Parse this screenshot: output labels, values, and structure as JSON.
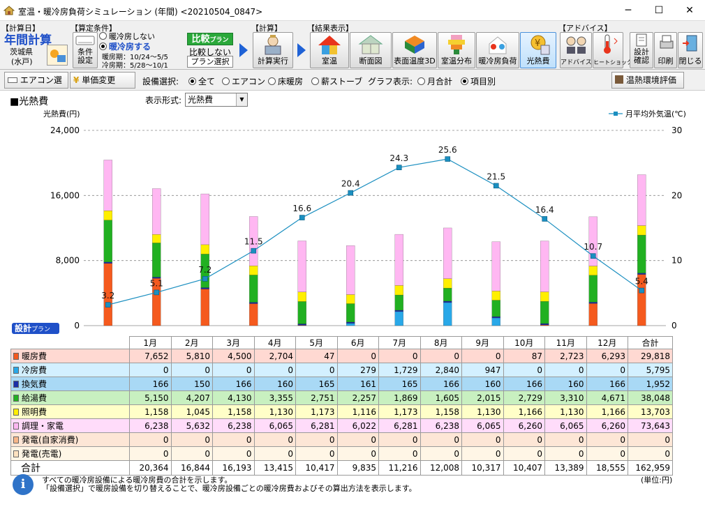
{
  "window": {
    "title": "室温・暖冷房負荷シミュレーション (年間) <20210504_0847>",
    "minimize": "─",
    "maximize": "☐",
    "close": "✕"
  },
  "toolbar": {
    "calc_day_label": "【計算日】",
    "calc_day_value": "年間計算",
    "region": "茨城県",
    "region_sub": "(水戸)",
    "conditions_label": "【算定条件】",
    "cond_button": "条件設定",
    "radio_no_ac": "暖冷房しない",
    "radio_ac": "暖冷房する",
    "heating_period": "暖房期：10/24～5/5",
    "cooling_period": "冷房期：5/28～10/1",
    "compare_title": "比較",
    "compare_sub": "プラン",
    "compare_no": "比較しない",
    "plan_select": "プラン選択",
    "calc_label": "【計算】",
    "calc_run": "計算実行",
    "results_label": "【結果表示】",
    "result_buttons": [
      "室温",
      "断面図",
      "表面温度3D",
      "室温分布",
      "暖冷房負荷",
      "光熱費"
    ],
    "advice_label": "【アドバイス】",
    "advice_buttons": [
      "アドバイス",
      "ヒートショック"
    ],
    "design_confirm": "設計確認",
    "print": "印刷",
    "close": "閉じる"
  },
  "options": {
    "aircon_select": "エアコン選択",
    "unit_price_change": "単価変更",
    "equipment_label": "設備選択:",
    "equipment_options": [
      "全て",
      "エアコン",
      "床暖房",
      "薪ストーブ"
    ],
    "graph_label": "グラフ表示:",
    "graph_options": [
      "月合計",
      "項目別"
    ],
    "thermal_env": "温熱環境評価"
  },
  "main": {
    "section_title": "■光熱費",
    "display_format_label": "表示形式:",
    "display_format_value": "光熱費",
    "plan_badge": "設計",
    "plan_badge_sub": "プラン",
    "info_line1": "すべての暖冷房設備による暖冷房費の合計を示します。",
    "info_line2": "「設備選択」で暖房設備を切り替えることで、暖冷房設備ごとの暖冷房費およびその算出方法を表示します。",
    "unit_note": "(単位:円)"
  },
  "chart_data": {
    "type": "bar",
    "ylabel": "光熱費(円)",
    "y2label": "月平均外気温(℃)",
    "ylim": [
      0,
      24000
    ],
    "y2lim": [
      0,
      30
    ],
    "yticks": [
      "0",
      "8,000",
      "16,000",
      "24,000"
    ],
    "y2ticks": [
      "0",
      "10",
      "20",
      "30"
    ],
    "categories": [
      "1月",
      "2月",
      "3月",
      "4月",
      "5月",
      "6月",
      "7月",
      "8月",
      "9月",
      "10月",
      "11月",
      "12月"
    ],
    "stacked": true,
    "series": [
      {
        "name": "暖房費",
        "color": "#f55a1e",
        "values": [
          7652,
          5810,
          4500,
          2704,
          47,
          0,
          0,
          0,
          0,
          87,
          2723,
          6293
        ]
      },
      {
        "name": "冷房費",
        "color": "#29a8e8",
        "values": [
          0,
          0,
          0,
          0,
          0,
          279,
          1729,
          2840,
          947,
          0,
          0,
          0
        ]
      },
      {
        "name": "換気費",
        "color": "#1c2fa8",
        "values": [
          166,
          150,
          166,
          160,
          165,
          161,
          165,
          166,
          160,
          166,
          160,
          166
        ]
      },
      {
        "name": "給湯費",
        "color": "#21b021",
        "values": [
          5150,
          4207,
          4130,
          3355,
          2751,
          2257,
          1869,
          1605,
          2015,
          2729,
          3310,
          4671
        ]
      },
      {
        "name": "照明費",
        "color": "#ffef00",
        "values": [
          1158,
          1045,
          1158,
          1130,
          1173,
          1116,
          1173,
          1158,
          1130,
          1166,
          1130,
          1166
        ]
      },
      {
        "name": "調理・家電",
        "color": "#ffb7f2",
        "values": [
          6238,
          5632,
          6238,
          6065,
          6281,
          6022,
          6281,
          6238,
          6065,
          6260,
          6065,
          6260
        ]
      }
    ],
    "line": {
      "name": "月平均外気温(℃)",
      "color": "#1b8fc0",
      "values": [
        3.2,
        5.1,
        7.2,
        11.5,
        16.6,
        20.4,
        24.3,
        25.6,
        21.5,
        16.4,
        10.7,
        5.4
      ]
    }
  },
  "table": {
    "headers": [
      "1月",
      "2月",
      "3月",
      "4月",
      "5月",
      "6月",
      "7月",
      "8月",
      "9月",
      "10月",
      "11月",
      "12月",
      "合計"
    ],
    "rows": [
      {
        "label": "暖房費",
        "bg": "#ffd9d2",
        "sw": "#f55a1e",
        "values": [
          "7,652",
          "5,810",
          "4,500",
          "2,704",
          "47",
          "0",
          "0",
          "0",
          "0",
          "87",
          "2,723",
          "6,293",
          "29,818"
        ]
      },
      {
        "label": "冷房費",
        "bg": "#d3f0ff",
        "sw": "#29a8e8",
        "values": [
          "0",
          "0",
          "0",
          "0",
          "0",
          "279",
          "1,729",
          "2,840",
          "947",
          "0",
          "0",
          "0",
          "5,795"
        ]
      },
      {
        "label": "換気費",
        "bg": "#a9d9f5",
        "sw": "#1c2fa8",
        "values": [
          "166",
          "150",
          "166",
          "160",
          "165",
          "161",
          "165",
          "166",
          "160",
          "166",
          "160",
          "166",
          "1,952"
        ]
      },
      {
        "label": "給湯費",
        "bg": "#c8f0c0",
        "sw": "#21b021",
        "values": [
          "5,150",
          "4,207",
          "4,130",
          "3,355",
          "2,751",
          "2,257",
          "1,869",
          "1,605",
          "2,015",
          "2,729",
          "3,310",
          "4,671",
          "38,048"
        ]
      },
      {
        "label": "照明費",
        "bg": "#ffffc8",
        "sw": "#ffef00",
        "values": [
          "1,158",
          "1,045",
          "1,158",
          "1,130",
          "1,173",
          "1,116",
          "1,173",
          "1,158",
          "1,130",
          "1,166",
          "1,130",
          "1,166",
          "13,703"
        ]
      },
      {
        "label": "調理・家電",
        "bg": "#ffdcfa",
        "sw": "#ffb7f2",
        "values": [
          "6,238",
          "5,632",
          "6,238",
          "6,065",
          "6,281",
          "6,022",
          "6,281",
          "6,238",
          "6,065",
          "6,260",
          "6,065",
          "6,260",
          "73,643"
        ]
      },
      {
        "label": "発電(自家消費)",
        "bg": "#fde6d6",
        "sw": "#f7b68a",
        "values": [
          "0",
          "0",
          "0",
          "0",
          "0",
          "0",
          "0",
          "0",
          "0",
          "0",
          "0",
          "0",
          "0"
        ]
      },
      {
        "label": "発電(売電)",
        "bg": "#fff6e6",
        "sw": "#fde2c0",
        "values": [
          "0",
          "0",
          "0",
          "0",
          "0",
          "0",
          "0",
          "0",
          "0",
          "0",
          "0",
          "0",
          "0"
        ]
      }
    ],
    "total_label": "合計",
    "totals": [
      "20,364",
      "16,844",
      "16,193",
      "13,415",
      "10,417",
      "9,835",
      "11,216",
      "12,008",
      "10,317",
      "10,407",
      "13,389",
      "18,555",
      "162,959"
    ]
  }
}
